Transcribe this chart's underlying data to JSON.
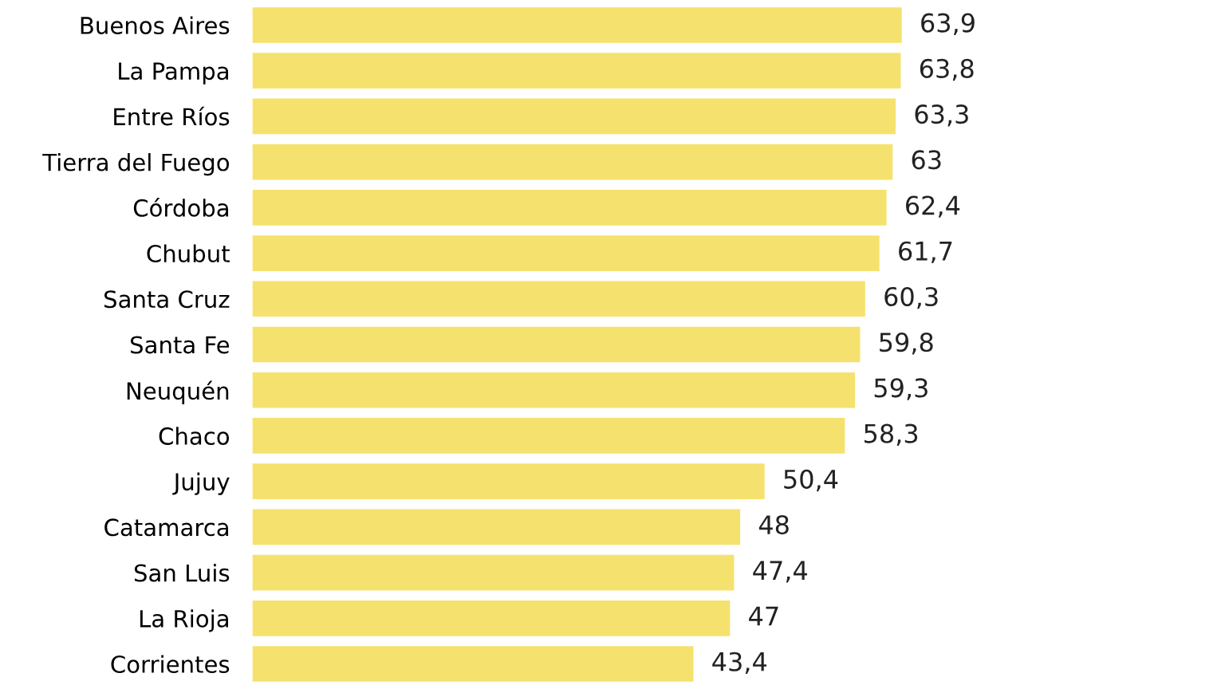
{
  "chart_data": {
    "type": "bar",
    "orientation": "horizontal",
    "categories": [
      "Buenos Aires",
      "La Pampa",
      "Entre Ríos",
      "Tierra del Fuego",
      "Córdoba",
      "Chubut",
      "Santa Cruz",
      "Santa Fe",
      "Neuquén",
      "Chaco",
      "Jujuy",
      "Catamarca",
      "San Luis",
      "La Rioja",
      "Corrientes"
    ],
    "values": [
      63.9,
      63.8,
      63.3,
      63,
      62.4,
      61.7,
      60.3,
      59.8,
      59.3,
      58.3,
      50.4,
      48,
      47.4,
      47,
      43.4
    ],
    "value_labels": [
      "63,9",
      "63,8",
      "63,3",
      "63",
      "62,4",
      "61,7",
      "60,3",
      "59,8",
      "59,3",
      "58,3",
      "50,4",
      "48",
      "47,4",
      "47",
      "43,4"
    ],
    "color": "#f5e26e",
    "tick_labels": "y",
    "grid": false,
    "legend": false
  }
}
